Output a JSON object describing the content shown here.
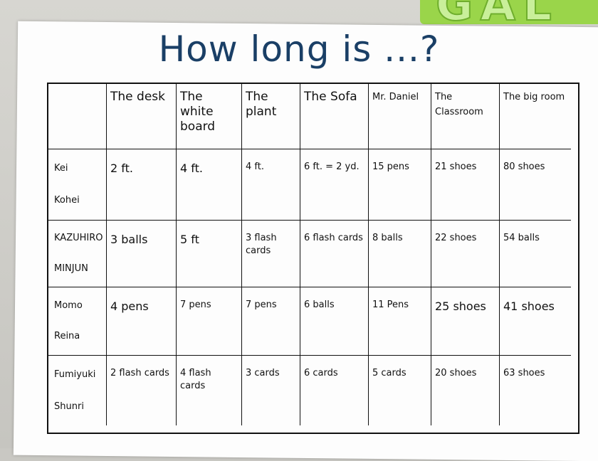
{
  "poster": {
    "title": "How long is ...?",
    "header": [
      "",
      "The desk",
      "The white board",
      "The plant",
      "The Sofa",
      "Mr. Daniel",
      "The Classroom",
      "The big room"
    ],
    "rows": [
      {
        "names": [
          "Kei",
          "Kohei"
        ],
        "values": [
          "2 ft.",
          "4 ft.",
          "4 ft.",
          "6 ft. = 2 yd.",
          "15 pens",
          "21 shoes",
          "80 shoes"
        ]
      },
      {
        "names": [
          "KAZUHIRO",
          "MINJUN"
        ],
        "values": [
          "3 balls",
          "5 ft",
          "3 flash cards",
          "6 flash cards",
          "8 balls",
          "22 shoes",
          "54 balls"
        ]
      },
      {
        "names": [
          "Momo",
          "Reina"
        ],
        "values": [
          "4 pens",
          "7 pens",
          "7 pens",
          "6 balls",
          "11 Pens",
          "25 shoes",
          "41 shoes"
        ]
      },
      {
        "names": [
          "Fumiyuki",
          "Shunri"
        ],
        "values": [
          "2 flash cards",
          "4 flash cards",
          "3 cards",
          "6 cards",
          "5 cards",
          "20 shoes",
          "63 shoes"
        ]
      }
    ]
  }
}
